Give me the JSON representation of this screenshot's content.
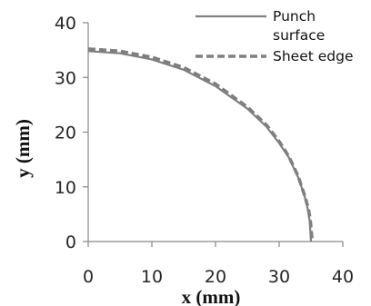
{
  "chart_data": {
    "type": "line",
    "xlabel": "x (mm)",
    "ylabel": "y (mm)",
    "xlim": [
      0,
      40
    ],
    "ylim": [
      0,
      40
    ],
    "x_ticks": [
      "0",
      "10",
      "20",
      "30",
      "40"
    ],
    "y_ticks": [
      "0",
      "10",
      "20",
      "30",
      "40"
    ],
    "grid": false,
    "legend_position": "top-right",
    "series": [
      {
        "name": "Punch surface",
        "name_lines": [
          "Punch",
          "surface"
        ],
        "style": "solid",
        "color": "#7f7f7f",
        "x": [
          0,
          5,
          10,
          15,
          20,
          25,
          28,
          30,
          31.5,
          33,
          34,
          34.5,
          34.8,
          35
        ],
        "y": [
          34.8,
          34.4,
          33.3,
          31.4,
          28.4,
          24.3,
          21.0,
          18.0,
          15.4,
          11.7,
          8.3,
          5.9,
          3.7,
          0
        ]
      },
      {
        "name": "Sheet edge",
        "name_lines": [
          "Sheet edge"
        ],
        "style": "dashed",
        "color": "#7f7f7f",
        "x": [
          0,
          5,
          10,
          15,
          20,
          25,
          28,
          30,
          31.5,
          33,
          34,
          34.6,
          34.9,
          35.2
        ],
        "y": [
          35.2,
          34.8,
          33.7,
          31.8,
          28.8,
          24.6,
          21.3,
          18.3,
          15.6,
          11.9,
          8.4,
          6.0,
          3.8,
          0
        ]
      }
    ]
  }
}
